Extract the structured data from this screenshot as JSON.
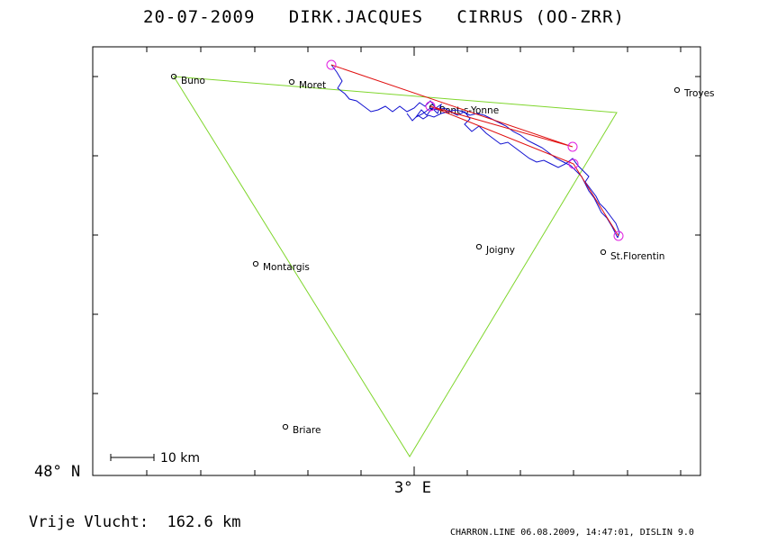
{
  "header": {
    "date": "20-07-2009",
    "pilot": "DIRK.JACQUES",
    "glider": "CIRRUS (OO-ZRR)"
  },
  "axes": {
    "lat_label": "48° N",
    "lon_label": "3° E"
  },
  "scale_bar": {
    "label": "10 km"
  },
  "distance": {
    "label": "Vrije Vlucht:",
    "value": "162.6 km"
  },
  "footer": "CHARRON.LINE 06.08.2009, 14:47:01, DISLIN 9.0",
  "colors": {
    "task": "#7fd62c",
    "track": "#1010d0",
    "scoring": "#e01010",
    "turnpoint": "#e020e0"
  },
  "towns": [
    {
      "name": "Buno"
    },
    {
      "name": "Moret"
    },
    {
      "name": "Pont-s-Yonne"
    },
    {
      "name": "Troyes"
    },
    {
      "name": "Joigny"
    },
    {
      "name": "St.Florentin"
    },
    {
      "name": "Montargis"
    },
    {
      "name": "Briare"
    }
  ]
}
